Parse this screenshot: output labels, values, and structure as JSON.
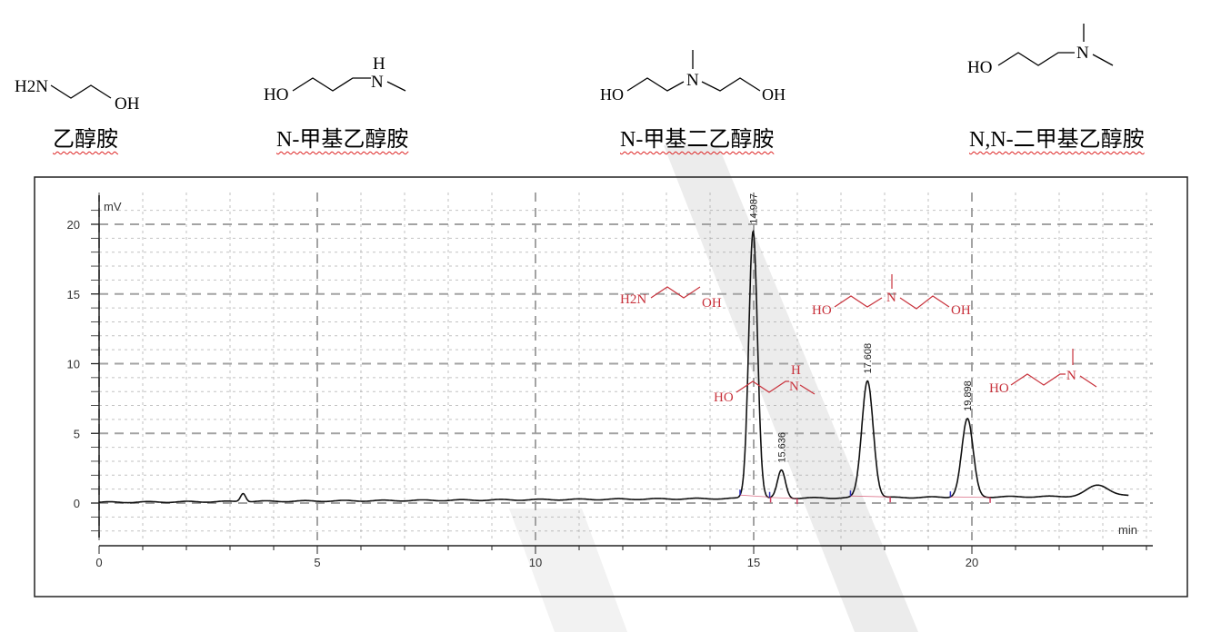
{
  "structures": [
    {
      "id": "ethanolamine",
      "labels": [
        "H2N",
        "OH"
      ],
      "caption": "乙醇胺"
    },
    {
      "id": "n-methylethanolamine",
      "labels": [
        "HO",
        "H",
        "N"
      ],
      "caption": "N-甲基乙醇胺"
    },
    {
      "id": "n-methyldiethanolamine",
      "labels": [
        "HO",
        "N",
        "OH"
      ],
      "caption": "N-甲基二乙醇胺"
    },
    {
      "id": "nn-dimethylethanolamine",
      "labels": [
        "HO",
        "N"
      ],
      "caption": "N,N-二甲基乙醇胺"
    }
  ],
  "colors": {
    "trace": "#111111",
    "annotation": "#c8323c",
    "grid": "#9a9a9a",
    "baseline_marker": "#d04060",
    "start_marker": "#3030c0"
  },
  "chart_data": {
    "type": "line",
    "xlabel": "min",
    "ylabel": "mV",
    "xlim": [
      0,
      24
    ],
    "ylim": [
      -2.5,
      21
    ],
    "xticks": [
      "0",
      "5",
      "10",
      "15",
      "20"
    ],
    "yticks": [
      "0",
      "5",
      "10",
      "15",
      "20"
    ],
    "grid": true,
    "peaks": [
      {
        "rt": 3.3,
        "height": 0.6,
        "width": 0.06,
        "label": ""
      },
      {
        "rt": 14.987,
        "height": 19.2,
        "width": 0.1,
        "label": "14.987"
      },
      {
        "rt": 15.636,
        "height": 2.0,
        "width": 0.09,
        "label": "15.636"
      },
      {
        "rt": 17.608,
        "height": 8.4,
        "width": 0.13,
        "label": "17.608"
      },
      {
        "rt": 19.898,
        "height": 5.6,
        "width": 0.13,
        "label": "19.898"
      },
      {
        "rt": 22.9,
        "height": 0.8,
        "width": 0.25,
        "label": ""
      }
    ],
    "baseline": {
      "start": 0.05,
      "end": 0.5
    },
    "run_end": 23.6,
    "annotations": [
      {
        "labels": [
          "H2N",
          "OH"
        ]
      },
      {
        "labels": [
          "HO",
          "N",
          "OH"
        ]
      },
      {
        "labels": [
          "HO",
          "H",
          "N"
        ]
      },
      {
        "labels": [
          "HO",
          "N"
        ]
      }
    ]
  }
}
